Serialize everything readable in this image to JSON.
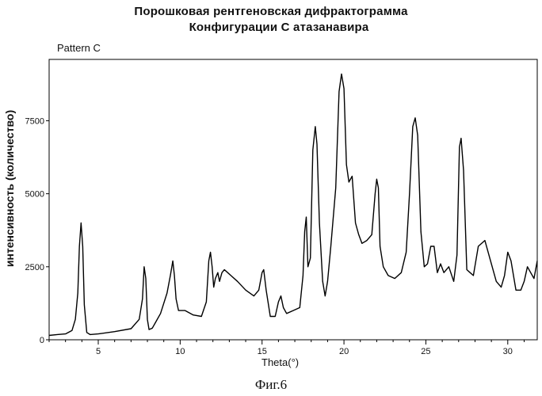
{
  "chart_data": {
    "type": "line",
    "title": "Порошковая рентгеновская дифрактограмма",
    "subtitle": "Конфигурации С атазанавира",
    "pattern_label": "Pattern C",
    "xlabel": "Theta(°)",
    "ylabel": "интенсивность (количество)",
    "xlim": [
      2,
      31.8
    ],
    "ylim": [
      0,
      9600
    ],
    "x_ticks": [
      5,
      10,
      15,
      20,
      25,
      30
    ],
    "y_ticks": [
      0,
      2500,
      5000,
      7500
    ],
    "y_tick_labels": [
      "0",
      "2500",
      "5000",
      "7500"
    ],
    "grid": false,
    "series": [
      {
        "x": [
          2.0,
          2.5,
          3.0,
          3.4,
          3.6,
          3.75,
          3.85,
          3.95,
          4.05,
          4.15,
          4.3,
          4.5,
          5.0,
          6.0,
          7.0,
          7.5,
          7.7,
          7.8,
          7.9,
          8.0,
          8.1,
          8.3,
          8.5,
          8.8,
          9.2,
          9.4,
          9.55,
          9.65,
          9.75,
          9.9,
          10.3,
          10.8,
          11.3,
          11.6,
          11.75,
          11.85,
          11.95,
          12.05,
          12.15,
          12.3,
          12.4,
          12.55,
          12.7,
          12.9,
          13.1,
          13.5,
          14.0,
          14.5,
          14.8,
          15.0,
          15.1,
          15.25,
          15.5,
          15.8,
          16.0,
          16.15,
          16.3,
          16.5,
          16.9,
          17.3,
          17.5,
          17.6,
          17.7,
          17.8,
          17.95,
          18.1,
          18.25,
          18.35,
          18.5,
          18.7,
          18.85,
          19.0,
          19.2,
          19.5,
          19.7,
          19.85,
          20.0,
          20.15,
          20.3,
          20.5,
          20.7,
          20.9,
          21.1,
          21.4,
          21.7,
          21.9,
          22.0,
          22.1,
          22.2,
          22.4,
          22.7,
          23.1,
          23.5,
          23.8,
          24.0,
          24.2,
          24.35,
          24.5,
          24.7,
          24.9,
          25.1,
          25.3,
          25.5,
          25.7,
          25.9,
          26.1,
          26.4,
          26.7,
          26.9,
          27.05,
          27.15,
          27.3,
          27.5,
          27.7,
          27.9,
          28.2,
          28.6,
          29.0,
          29.3,
          29.6,
          29.8,
          30.0,
          30.2,
          30.5,
          30.8,
          31.0,
          31.2,
          31.4,
          31.6,
          31.8
        ],
        "y": [
          150,
          180,
          200,
          320,
          700,
          1600,
          3200,
          4000,
          3200,
          1200,
          250,
          180,
          200,
          280,
          380,
          700,
          1400,
          2500,
          2100,
          700,
          350,
          400,
          600,
          900,
          1600,
          2200,
          2700,
          2200,
          1400,
          1000,
          1000,
          850,
          800,
          1300,
          2700,
          3000,
          2500,
          1800,
          2100,
          2300,
          2000,
          2300,
          2400,
          2300,
          2200,
          2000,
          1700,
          1500,
          1700,
          2300,
          2400,
          1700,
          800,
          800,
          1300,
          1500,
          1100,
          900,
          1000,
          1100,
          2200,
          3700,
          4200,
          2500,
          2800,
          6500,
          7300,
          6700,
          4000,
          2000,
          1500,
          2000,
          3200,
          5200,
          8500,
          9100,
          8600,
          6000,
          5400,
          5600,
          4000,
          3600,
          3300,
          3400,
          3600,
          5000,
          5500,
          5200,
          3200,
          2500,
          2200,
          2100,
          2300,
          3000,
          5000,
          7300,
          7600,
          7000,
          3700,
          2500,
          2600,
          3200,
          3200,
          2300,
          2600,
          2300,
          2500,
          2000,
          2900,
          6600,
          6900,
          5800,
          2400,
          2300,
          2200,
          3200,
          3400,
          2600,
          2000,
          1800,
          2200,
          3000,
          2700,
          1700,
          1700,
          2000,
          2500,
          2300,
          2100,
          2700
        ]
      }
    ],
    "figure_caption": "Фиг.6"
  },
  "colors": {
    "line": "#000000",
    "axis": "#000000",
    "background": "#ffffff"
  }
}
